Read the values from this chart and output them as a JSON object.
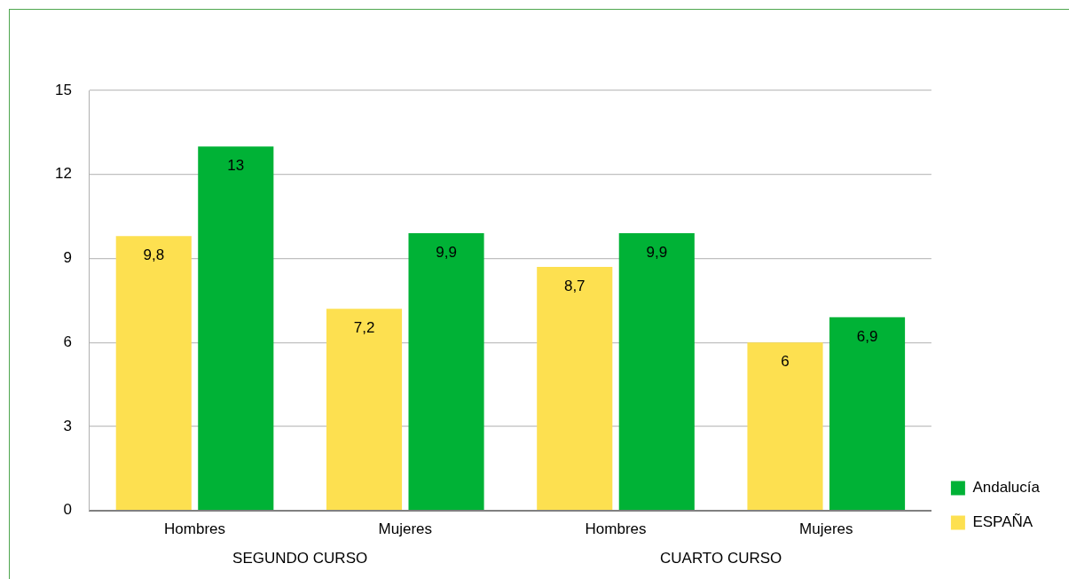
{
  "chart_data": {
    "type": "bar",
    "categories": [
      "Hombres",
      "Mujeres",
      "Hombres",
      "Mujeres"
    ],
    "series": [
      {
        "name": "ESPAÑA",
        "color": "#fde050",
        "values": [
          9.8,
          7.2,
          8.7,
          6
        ],
        "value_labels": [
          "9,8",
          "7,2",
          "8,7",
          "6"
        ]
      },
      {
        "name": "Andalucía",
        "color": "#00b236",
        "values": [
          13,
          9.9,
          9.9,
          6.9
        ],
        "value_labels": [
          "13",
          "9,9",
          "9,9",
          "6,9"
        ]
      }
    ],
    "ylim": [
      0,
      15
    ],
    "yticks": [
      0,
      3,
      6,
      9,
      12,
      15
    ],
    "grid": "y",
    "legend": "bottom right",
    "annotations": [
      "SEGUNDO CURSO",
      "CUARTO CURSO"
    ]
  }
}
